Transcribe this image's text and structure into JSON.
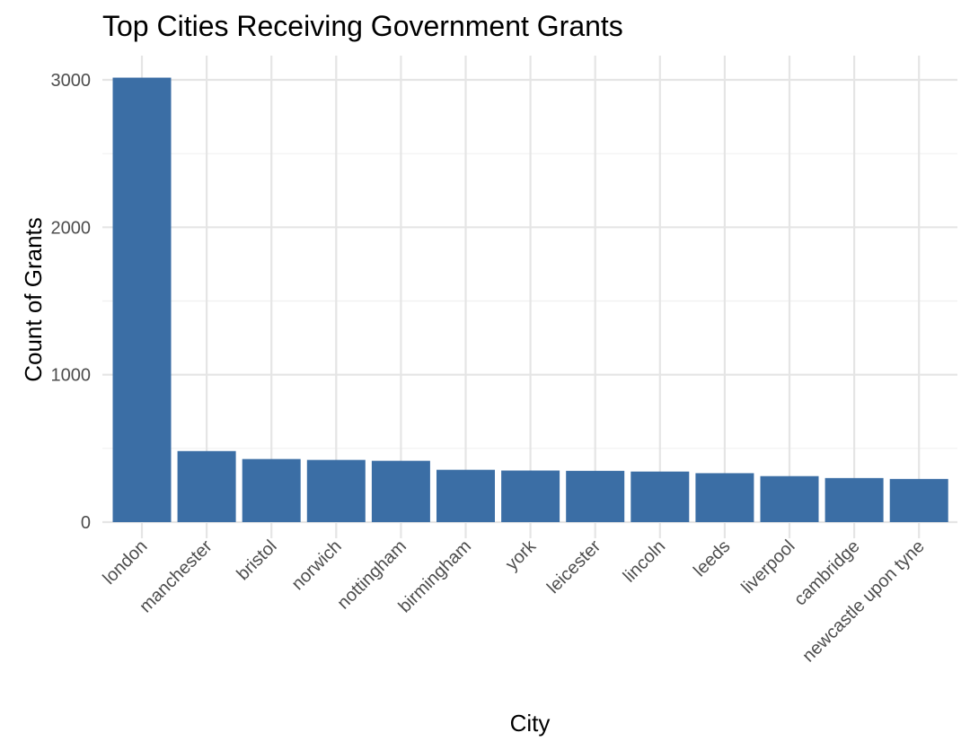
{
  "chart_data": {
    "type": "bar",
    "title": "Top Cities Receiving Government Grants",
    "xlabel": "City",
    "ylabel": "Count of Grants",
    "categories": [
      "london",
      "manchester",
      "bristol",
      "norwich",
      "nottingham",
      "birmingham",
      "york",
      "leicester",
      "lincoln",
      "leeds",
      "liverpool",
      "cambridge",
      "newcastle upon tyne"
    ],
    "values": [
      3015,
      482,
      428,
      422,
      416,
      355,
      350,
      348,
      343,
      332,
      312,
      299,
      293
    ],
    "ylim": [
      0,
      3000
    ],
    "yticks": [
      0,
      1000,
      2000,
      3000
    ],
    "grid": true,
    "bar_color": "#3b6ea5",
    "background": "#ffffff"
  }
}
